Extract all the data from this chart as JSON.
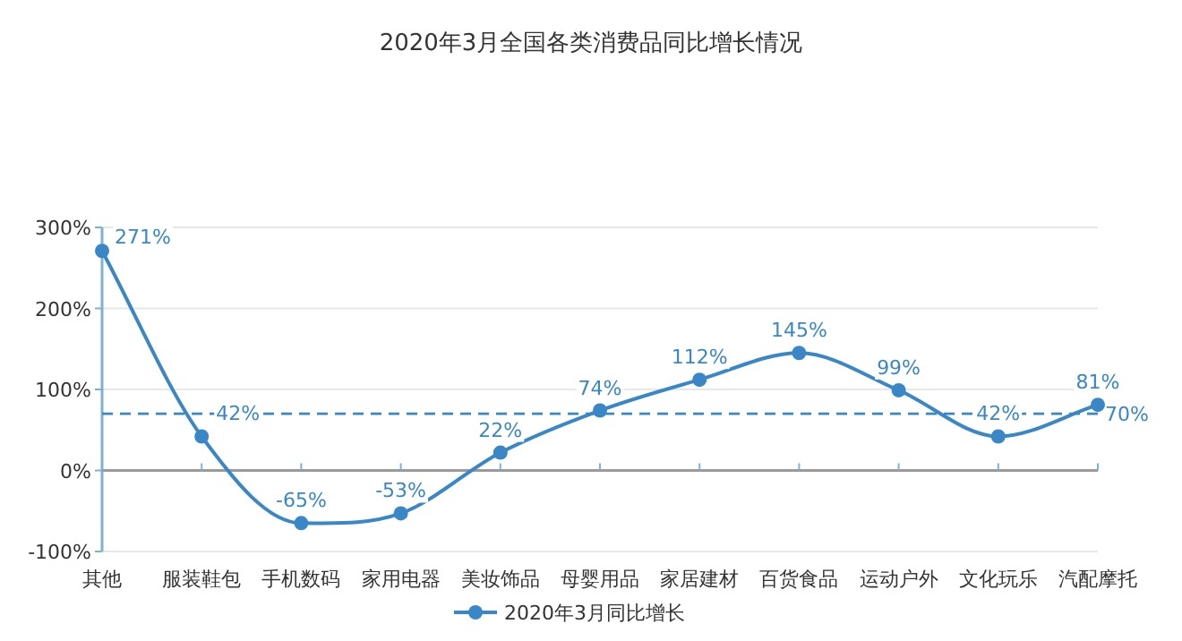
{
  "chart_data": {
    "type": "line",
    "title": "2020年3月全国各类消费品同比增长情况",
    "categories": [
      "其他",
      "服装鞋包",
      "手机数码",
      "家用电器",
      "美妆饰品",
      "母婴用品",
      "家居建材",
      "百货食品",
      "运动户外",
      "文化玩乐",
      "汽配摩托"
    ],
    "series": [
      {
        "name": "2020年3月同比增长",
        "color": "#3a87c8",
        "values": [
          271,
          42,
          -65,
          -53,
          22,
          74,
          112,
          145,
          99,
          42,
          81
        ],
        "value_labels": [
          "271%",
          "42%",
          "-65%",
          "-53%",
          "22%",
          "74%",
          "112%",
          "145%",
          "99%",
          "42%",
          "81%"
        ]
      }
    ],
    "ylim": [
      -100,
      300
    ],
    "yticks": [
      {
        "value": -100,
        "label": "-100%"
      },
      {
        "value": 0,
        "label": "0%"
      },
      {
        "value": 100,
        "label": "100%"
      },
      {
        "value": 200,
        "label": "200%"
      },
      {
        "value": 300,
        "label": "300%"
      }
    ],
    "ref_lines": [
      {
        "axis": "y",
        "value": 70,
        "label": "70%",
        "color": "#3a87c8",
        "line_style": "dashed"
      }
    ],
    "grid": "y",
    "legend": "bottom",
    "marker": "circle",
    "line_style": "solid"
  }
}
